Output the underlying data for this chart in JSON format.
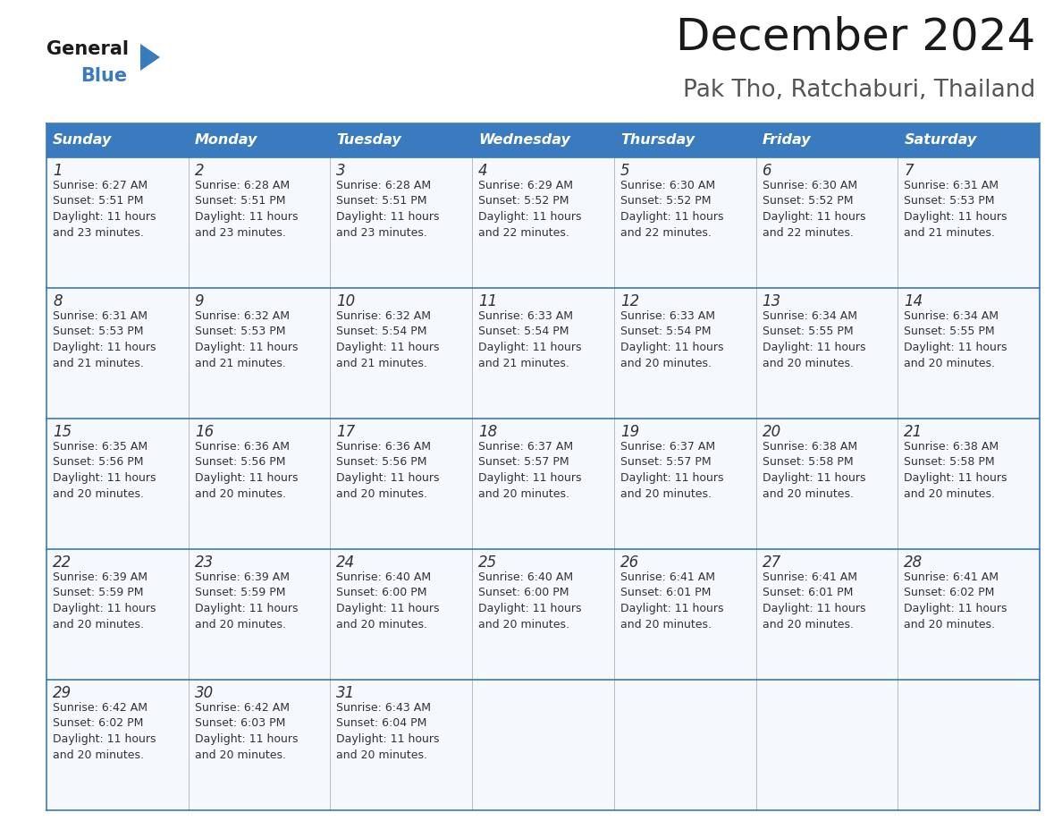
{
  "title": "December 2024",
  "subtitle": "Pak Tho, Ratchaburi, Thailand",
  "header_bg_color": "#3a7bbf",
  "header_text_color": "#ffffff",
  "cell_bg_color": "#f5f8fc",
  "border_color": "#3a7bbf",
  "text_color": "#333333",
  "days_of_week": [
    "Sunday",
    "Monday",
    "Tuesday",
    "Wednesday",
    "Thursday",
    "Friday",
    "Saturday"
  ],
  "calendar_data": [
    [
      {
        "day": 1,
        "sunrise": "6:27 AM",
        "sunset": "5:51 PM",
        "daylight": "11 hours and 23 minutes."
      },
      {
        "day": 2,
        "sunrise": "6:28 AM",
        "sunset": "5:51 PM",
        "daylight": "11 hours and 23 minutes."
      },
      {
        "day": 3,
        "sunrise": "6:28 AM",
        "sunset": "5:51 PM",
        "daylight": "11 hours and 23 minutes."
      },
      {
        "day": 4,
        "sunrise": "6:29 AM",
        "sunset": "5:52 PM",
        "daylight": "11 hours and 22 minutes."
      },
      {
        "day": 5,
        "sunrise": "6:30 AM",
        "sunset": "5:52 PM",
        "daylight": "11 hours and 22 minutes."
      },
      {
        "day": 6,
        "sunrise": "6:30 AM",
        "sunset": "5:52 PM",
        "daylight": "11 hours and 22 minutes."
      },
      {
        "day": 7,
        "sunrise": "6:31 AM",
        "sunset": "5:53 PM",
        "daylight": "11 hours and 21 minutes."
      }
    ],
    [
      {
        "day": 8,
        "sunrise": "6:31 AM",
        "sunset": "5:53 PM",
        "daylight": "11 hours and 21 minutes."
      },
      {
        "day": 9,
        "sunrise": "6:32 AM",
        "sunset": "5:53 PM",
        "daylight": "11 hours and 21 minutes."
      },
      {
        "day": 10,
        "sunrise": "6:32 AM",
        "sunset": "5:54 PM",
        "daylight": "11 hours and 21 minutes."
      },
      {
        "day": 11,
        "sunrise": "6:33 AM",
        "sunset": "5:54 PM",
        "daylight": "11 hours and 21 minutes."
      },
      {
        "day": 12,
        "sunrise": "6:33 AM",
        "sunset": "5:54 PM",
        "daylight": "11 hours and 20 minutes."
      },
      {
        "day": 13,
        "sunrise": "6:34 AM",
        "sunset": "5:55 PM",
        "daylight": "11 hours and 20 minutes."
      },
      {
        "day": 14,
        "sunrise": "6:34 AM",
        "sunset": "5:55 PM",
        "daylight": "11 hours and 20 minutes."
      }
    ],
    [
      {
        "day": 15,
        "sunrise": "6:35 AM",
        "sunset": "5:56 PM",
        "daylight": "11 hours and 20 minutes."
      },
      {
        "day": 16,
        "sunrise": "6:36 AM",
        "sunset": "5:56 PM",
        "daylight": "11 hours and 20 minutes."
      },
      {
        "day": 17,
        "sunrise": "6:36 AM",
        "sunset": "5:56 PM",
        "daylight": "11 hours and 20 minutes."
      },
      {
        "day": 18,
        "sunrise": "6:37 AM",
        "sunset": "5:57 PM",
        "daylight": "11 hours and 20 minutes."
      },
      {
        "day": 19,
        "sunrise": "6:37 AM",
        "sunset": "5:57 PM",
        "daylight": "11 hours and 20 minutes."
      },
      {
        "day": 20,
        "sunrise": "6:38 AM",
        "sunset": "5:58 PM",
        "daylight": "11 hours and 20 minutes."
      },
      {
        "day": 21,
        "sunrise": "6:38 AM",
        "sunset": "5:58 PM",
        "daylight": "11 hours and 20 minutes."
      }
    ],
    [
      {
        "day": 22,
        "sunrise": "6:39 AM",
        "sunset": "5:59 PM",
        "daylight": "11 hours and 20 minutes."
      },
      {
        "day": 23,
        "sunrise": "6:39 AM",
        "sunset": "5:59 PM",
        "daylight": "11 hours and 20 minutes."
      },
      {
        "day": 24,
        "sunrise": "6:40 AM",
        "sunset": "6:00 PM",
        "daylight": "11 hours and 20 minutes."
      },
      {
        "day": 25,
        "sunrise": "6:40 AM",
        "sunset": "6:00 PM",
        "daylight": "11 hours and 20 minutes."
      },
      {
        "day": 26,
        "sunrise": "6:41 AM",
        "sunset": "6:01 PM",
        "daylight": "11 hours and 20 minutes."
      },
      {
        "day": 27,
        "sunrise": "6:41 AM",
        "sunset": "6:01 PM",
        "daylight": "11 hours and 20 minutes."
      },
      {
        "day": 28,
        "sunrise": "6:41 AM",
        "sunset": "6:02 PM",
        "daylight": "11 hours and 20 minutes."
      }
    ],
    [
      {
        "day": 29,
        "sunrise": "6:42 AM",
        "sunset": "6:02 PM",
        "daylight": "11 hours and 20 minutes."
      },
      {
        "day": 30,
        "sunrise": "6:42 AM",
        "sunset": "6:03 PM",
        "daylight": "11 hours and 20 minutes."
      },
      {
        "day": 31,
        "sunrise": "6:43 AM",
        "sunset": "6:04 PM",
        "daylight": "11 hours and 20 minutes."
      },
      null,
      null,
      null,
      null
    ]
  ],
  "logo_triangle_color": "#3a7bbf",
  "fig_width": 11.88,
  "fig_height": 9.18,
  "dpi": 100
}
